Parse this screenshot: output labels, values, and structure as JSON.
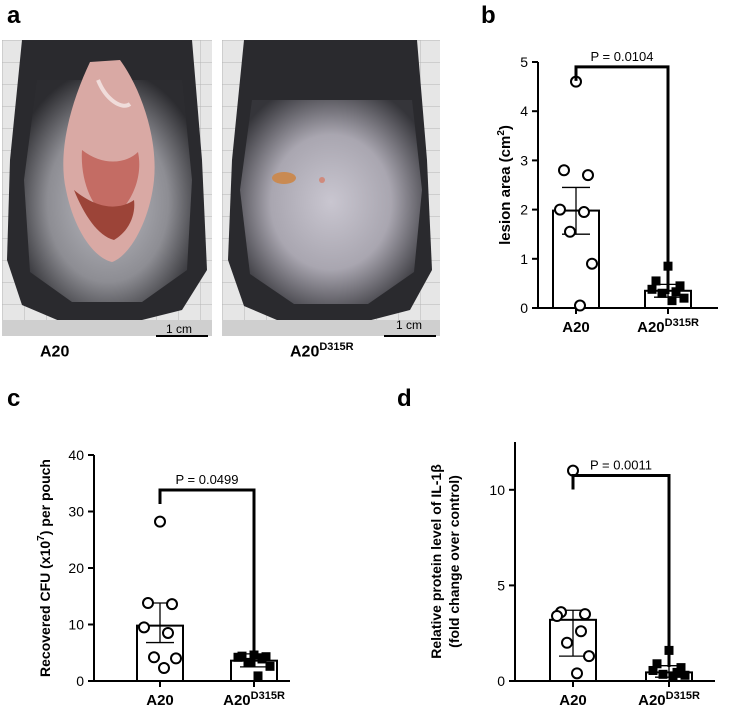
{
  "panels": {
    "a": {
      "letter": "a",
      "photos": [
        {
          "label": "A20",
          "label_sup": "",
          "scale": "1 cm"
        },
        {
          "label": "A20",
          "label_sup": "D315R",
          "scale": "1 cm"
        }
      ]
    },
    "b": {
      "letter": "b"
    },
    "c": {
      "letter": "c"
    },
    "d": {
      "letter": "d"
    }
  },
  "chart_data": [
    {
      "panel": "b",
      "type": "bar",
      "categories": [
        "A20",
        "A20D315R"
      ],
      "category_labels": [
        {
          "main": "A20",
          "sup": ""
        },
        {
          "main": "A20",
          "sup": "D315R"
        }
      ],
      "ylabel": "lesion area (cm",
      "ylabel_sup": "2",
      "ylabel_end": ")",
      "ylim": [
        0,
        5
      ],
      "yticks": [
        0,
        1,
        2,
        3,
        4,
        5
      ],
      "bar_values": [
        1.98,
        0.35
      ],
      "error": [
        [
          1.5,
          2.45
        ],
        [
          0.22,
          0.48
        ]
      ],
      "points": [
        [
          4.6,
          2.8,
          2.7,
          2.0,
          1.95,
          1.55,
          0.9,
          0.05
        ],
        [
          0.85,
          0.55,
          0.45,
          0.38,
          0.33,
          0.3,
          0.2,
          0.15
        ]
      ],
      "markers": [
        "open-circle",
        "filled-square"
      ],
      "annotation": "P = 0.0104",
      "bracket_y": 4.9
    },
    {
      "panel": "c",
      "type": "bar",
      "categories": [
        "A20",
        "A20D315R"
      ],
      "category_labels": [
        {
          "main": "A20",
          "sup": ""
        },
        {
          "main": "A20",
          "sup": "D315R"
        }
      ],
      "ylabel": "Recovered CFU (x10",
      "ylabel_sup": "7",
      "ylabel_end": ") per pouch",
      "ylim": [
        0,
        40
      ],
      "yticks": [
        0,
        10,
        20,
        30,
        40
      ],
      "bar_values": [
        9.8,
        3.6
      ],
      "error": [
        [
          6.8,
          13.8
        ],
        [
          2.5,
          4.8
        ]
      ],
      "points": [
        [
          28.2,
          13.8,
          13.6,
          9.5,
          8.5,
          4.2,
          4.0,
          2.3
        ],
        [
          4.6,
          4.4,
          4.3,
          4.2,
          3.9,
          3.3,
          2.6,
          0.9
        ]
      ],
      "markers": [
        "open-circle",
        "filled-square"
      ],
      "annotation": "P = 0.0499",
      "bracket_y": 33.8
    },
    {
      "panel": "d",
      "type": "bar",
      "categories": [
        "A20",
        "A20D315R"
      ],
      "category_labels": [
        {
          "main": "A20",
          "sup": ""
        },
        {
          "main": "A20",
          "sup": "D315R"
        }
      ],
      "ylabel": "Relative protein level of IL-1β",
      "ylabel2": "(fold change over control)",
      "ylim": [
        0,
        12.5
      ],
      "yticks": [
        0,
        5,
        10
      ],
      "bar_values": [
        3.2,
        0.45
      ],
      "error": [
        [
          1.3,
          3.7
        ],
        [
          0.2,
          0.8
        ]
      ],
      "points": [
        [
          11.0,
          3.6,
          3.5,
          3.4,
          2.6,
          2.0,
          1.3,
          0.4
        ],
        [
          1.6,
          0.9,
          0.7,
          0.55,
          0.45,
          0.35,
          0.3,
          0.25
        ]
      ],
      "markers": [
        "open-circle",
        "filled-square"
      ],
      "annotation": "P = 0.0011",
      "bracket_y": 10.75
    }
  ]
}
